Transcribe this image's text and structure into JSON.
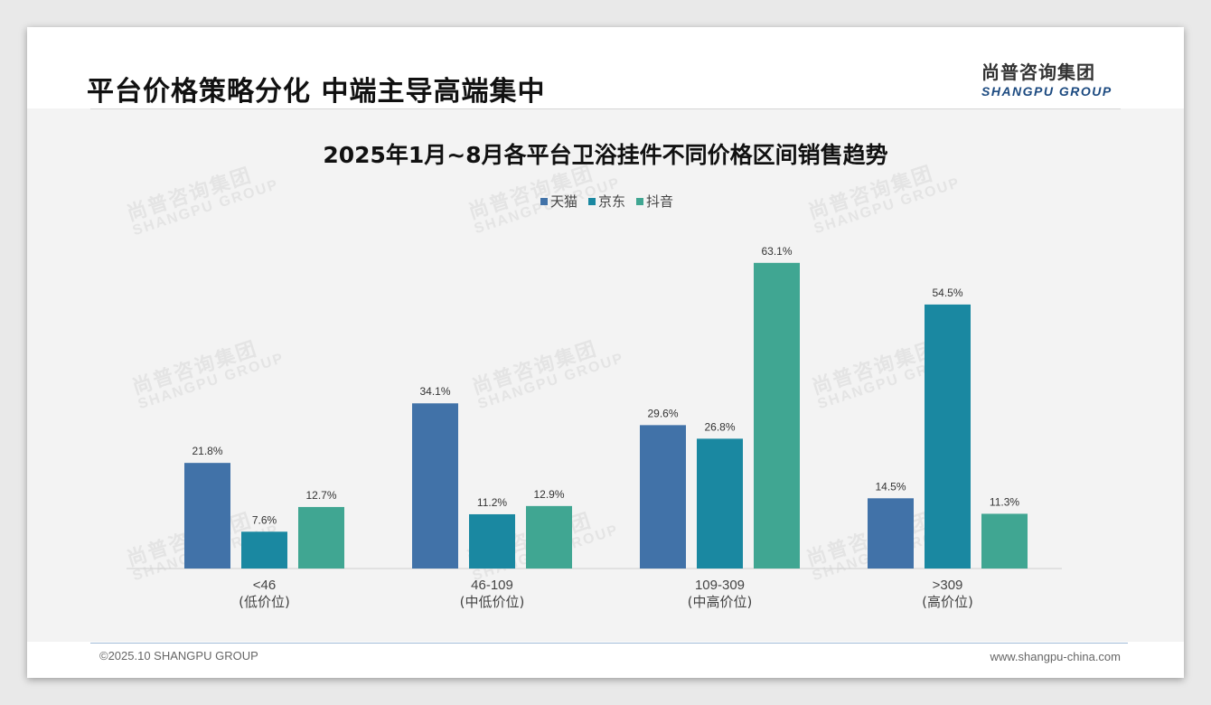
{
  "header": {
    "title": "平台价格策略分化 中端主导高端集中",
    "logo_cn": "尚普咨询集团",
    "logo_en": "SHANGPU GROUP"
  },
  "watermark": {
    "cn": "尚普咨询集团",
    "en": "SHANGPU GROUP"
  },
  "footer": {
    "copyright": "©2025.10 SHANGPU GROUP",
    "website": "www.shangpu-china.com"
  },
  "colors": {
    "tmall": "#4172a8",
    "jd": "#1a88a1",
    "douyin": "#40a692"
  },
  "chart_data": {
    "type": "bar",
    "title": "2025年1月~8月各平台卫浴挂件不同价格区间销售趋势",
    "categories": [
      "<46",
      "46-109",
      "109-309",
      ">309"
    ],
    "category_sublabels": [
      "(低价位)",
      "(中低价位)",
      "(中高价位)",
      "(高价位)"
    ],
    "series": [
      {
        "name": "天猫",
        "values": [
          21.8,
          34.1,
          29.6,
          14.5
        ],
        "labels": [
          "21.8%",
          "34.1%",
          "29.6%",
          "14.5%"
        ]
      },
      {
        "name": "京东",
        "values": [
          7.6,
          11.2,
          26.8,
          54.5
        ],
        "labels": [
          "7.6%",
          "11.2%",
          "26.8%",
          "54.5%"
        ]
      },
      {
        "name": "抖音",
        "values": [
          12.7,
          12.9,
          63.1,
          11.3
        ],
        "labels": [
          "12.7%",
          "12.9%",
          "63.1%",
          "11.3%"
        ]
      }
    ],
    "xlabel": "",
    "ylabel": "",
    "ylim": [
      0,
      64
    ],
    "legend": "top-center",
    "grid": false
  }
}
